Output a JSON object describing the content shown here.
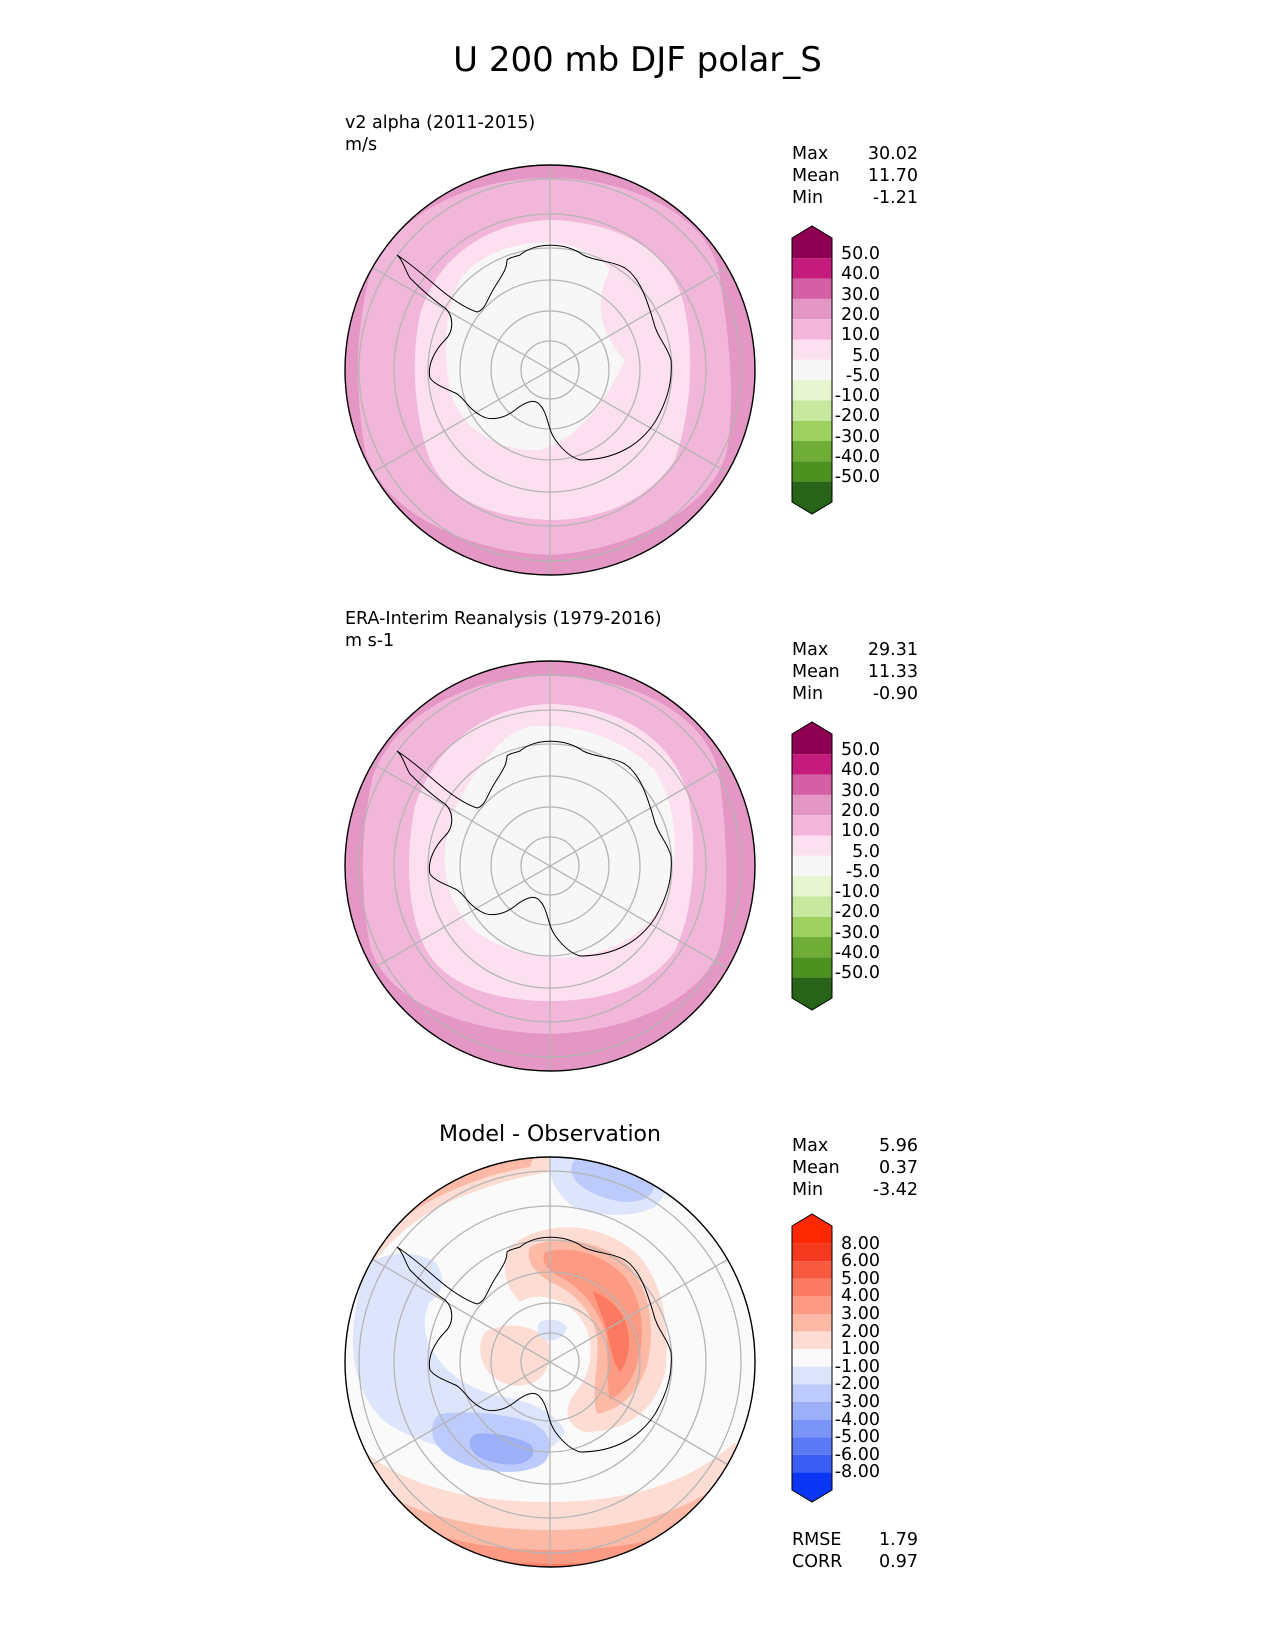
{
  "title": "U 200 mb DJF polar_S",
  "colors": {
    "pink": [
      "#f7f7f7",
      "#fde0ef",
      "#f1b6da",
      "#e497c5",
      "#d65ea4",
      "#c51b7d",
      "#8e0152"
    ],
    "green": [
      "#e6f5d0",
      "#c8e8a0",
      "#9fd162",
      "#70ad37",
      "#4d9221",
      "#276419"
    ],
    "reds": [
      "#fcdcd3",
      "#fcbaa6",
      "#fc9a83",
      "#fc7a62",
      "#f75a3f",
      "#f53a1f",
      "#fe2800"
    ],
    "blues": [
      "#dde5fc",
      "#bccbfb",
      "#9cb0fa",
      "#7b94f7",
      "#5a79f6",
      "#3a5ef4",
      "#0c36f5"
    ],
    "neutral": "#fafafa",
    "grid": "#b5b5b5"
  },
  "chart_data": [
    {
      "type": "heatmap",
      "name": "test",
      "projection": "south-polar-stereographic",
      "label": "v2 alpha (2011-2015)",
      "units": "m/s",
      "stats": [
        {
          "name": "Max",
          "value": "30.02"
        },
        {
          "name": "Mean",
          "value": "11.70"
        },
        {
          "name": "Min",
          "value": "-1.21"
        }
      ],
      "colorbar": {
        "ticks": [
          "50.0",
          "40.0",
          "30.0",
          "20.0",
          "10.0",
          "5.0",
          "-5.0",
          "-10.0",
          "-20.0",
          "-30.0",
          "-40.0",
          "-50.0"
        ],
        "extend": "both"
      },
      "zonal_bands_m_s": [
        {
          "from_center_frac": 0.0,
          "to_frac": 0.56,
          "range": "-5 to 5"
        },
        {
          "from_center_frac": 0.56,
          "to_frac": 0.74,
          "range": "5 to 10"
        },
        {
          "from_center_frac": 0.74,
          "to_frac": 0.88,
          "range": "10 to 20"
        },
        {
          "from_center_frac": 0.88,
          "to_frac": 1.0,
          "range": "20 to 30"
        }
      ]
    },
    {
      "type": "heatmap",
      "name": "reference",
      "projection": "south-polar-stereographic",
      "label": "ERA-Interim Reanalysis (1979-2016)",
      "units": "m s-1",
      "stats": [
        {
          "name": "Max",
          "value": "29.31"
        },
        {
          "name": "Mean",
          "value": "11.33"
        },
        {
          "name": "Min",
          "value": "-0.90"
        }
      ],
      "colorbar": {
        "ticks": [
          "50.0",
          "40.0",
          "30.0",
          "20.0",
          "10.0",
          "5.0",
          "-5.0",
          "-10.0",
          "-20.0",
          "-30.0",
          "-40.0",
          "-50.0"
        ],
        "extend": "both"
      }
    },
    {
      "type": "heatmap",
      "name": "diff",
      "projection": "south-polar-stereographic",
      "title": "Model - Observation",
      "stats": [
        {
          "name": "Max",
          "value": "5.96"
        },
        {
          "name": "Mean",
          "value": "0.37"
        },
        {
          "name": "Min",
          "value": "-3.42"
        }
      ],
      "colorbar": {
        "ticks": [
          "8.00",
          "6.00",
          "5.00",
          "4.00",
          "3.00",
          "2.00",
          "1.00",
          "-1.00",
          "-2.00",
          "-3.00",
          "-4.00",
          "-5.00",
          "-6.00",
          "-8.00"
        ],
        "extend": "both"
      },
      "metrics": [
        {
          "name": "RMSE",
          "value": "1.79"
        },
        {
          "name": "CORR",
          "value": "0.97"
        }
      ]
    }
  ]
}
